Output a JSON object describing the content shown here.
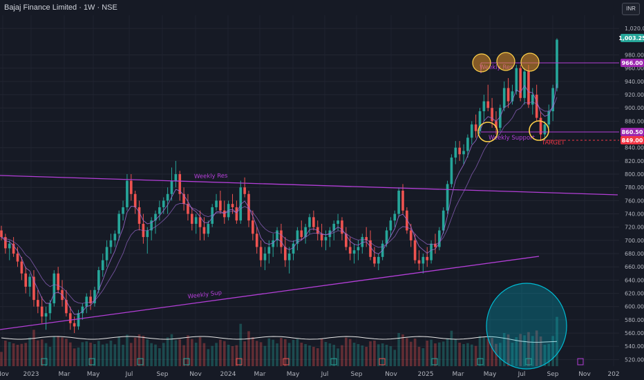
{
  "header": {
    "title": "Bajaj Finance Limited · 1W · NSE",
    "currency": "INR"
  },
  "colors": {
    "background": "#161a25",
    "up": "#26a69a",
    "down": "#ef5350",
    "trendline": "#b43fd8",
    "ema": "#9c6bd1",
    "volume_ma": "#e8e8e8",
    "highlight_circle": "#ffd24a",
    "volume_oval": "#00bcd4",
    "last_price_badge": "#26a69a",
    "resistance_badge": "#9c27b0",
    "support_badge": "#9c27b0",
    "target_badge": "#f23645"
  },
  "chart_data": {
    "type": "candlestick",
    "title": "Bajaj Finance Limited · 1W · NSE",
    "ylim": [
      510,
      1040
    ],
    "y_ticks": [
      "1,020.00",
      "980.00",
      "960.00",
      "940.00",
      "920.00",
      "900.00",
      "880.00",
      "840.00",
      "820.00",
      "800.00",
      "780.00",
      "760.00",
      "740.00",
      "720.00",
      "700.00",
      "680.00",
      "660.00",
      "640.00",
      "620.00",
      "600.00",
      "580.00",
      "560.00",
      "540.00",
      "520.00"
    ],
    "x_ticks": [
      "Nov",
      "2023",
      "Mar",
      "May",
      "Jul",
      "Sep",
      "Nov",
      "2024",
      "Mar",
      "May",
      "Jul",
      "Sep",
      "Nov",
      "2025",
      "Mar",
      "May",
      "Jul",
      "Sep",
      "Nov",
      "202"
    ],
    "last_price": "1,003.25",
    "price_labels": [
      {
        "name": "resistance",
        "text": "966.00"
      },
      {
        "name": "support",
        "text": "860.50"
      },
      {
        "name": "target",
        "text": "849.00"
      }
    ],
    "series": [
      {
        "type": "ohlc",
        "values": [
          [
            715,
            722,
            700,
            705
          ],
          [
            705,
            710,
            680,
            688
          ],
          [
            688,
            700,
            670,
            695
          ],
          [
            695,
            705,
            675,
            680
          ],
          [
            680,
            690,
            660,
            668
          ],
          [
            668,
            675,
            640,
            650
          ],
          [
            650,
            660,
            620,
            630
          ],
          [
            630,
            650,
            615,
            645
          ],
          [
            645,
            655,
            600,
            610
          ],
          [
            610,
            625,
            590,
            600
          ],
          [
            600,
            615,
            575,
            585
          ],
          [
            585,
            600,
            565,
            590
          ],
          [
            590,
            610,
            580,
            605
          ],
          [
            605,
            655,
            600,
            650
          ],
          [
            650,
            660,
            620,
            625
          ],
          [
            625,
            640,
            600,
            610
          ],
          [
            610,
            625,
            585,
            590
          ],
          [
            590,
            600,
            565,
            575
          ],
          [
            575,
            585,
            560,
            570
          ],
          [
            570,
            595,
            565,
            590
          ],
          [
            590,
            605,
            580,
            600
          ],
          [
            600,
            620,
            590,
            615
          ],
          [
            615,
            625,
            595,
            605
          ],
          [
            605,
            630,
            600,
            625
          ],
          [
            625,
            660,
            620,
            655
          ],
          [
            655,
            680,
            645,
            670
          ],
          [
            670,
            700,
            660,
            690
          ],
          [
            690,
            710,
            680,
            700
          ],
          [
            700,
            715,
            690,
            710
          ],
          [
            710,
            745,
            700,
            740
          ],
          [
            740,
            760,
            730,
            750
          ],
          [
            750,
            800,
            745,
            790
          ],
          [
            790,
            800,
            760,
            770
          ],
          [
            770,
            775,
            740,
            750
          ],
          [
            750,
            760,
            715,
            725
          ],
          [
            725,
            740,
            695,
            705
          ],
          [
            705,
            720,
            680,
            715
          ],
          [
            715,
            735,
            700,
            730
          ],
          [
            730,
            745,
            710,
            740
          ],
          [
            740,
            760,
            730,
            750
          ],
          [
            750,
            765,
            740,
            760
          ],
          [
            760,
            780,
            740,
            770
          ],
          [
            770,
            810,
            760,
            790
          ],
          [
            790,
            820,
            780,
            800
          ],
          [
            800,
            805,
            760,
            770
          ],
          [
            770,
            780,
            745,
            755
          ],
          [
            755,
            770,
            730,
            740
          ],
          [
            740,
            750,
            715,
            725
          ],
          [
            725,
            740,
            710,
            735
          ],
          [
            735,
            745,
            700,
            720
          ],
          [
            720,
            735,
            700,
            710
          ],
          [
            710,
            730,
            705,
            725
          ],
          [
            725,
            755,
            720,
            750
          ],
          [
            750,
            770,
            745,
            760
          ],
          [
            760,
            775,
            740,
            745
          ],
          [
            745,
            760,
            725,
            735
          ],
          [
            735,
            760,
            730,
            755
          ],
          [
            755,
            770,
            740,
            750
          ],
          [
            750,
            760,
            725,
            730
          ],
          [
            730,
            790,
            725,
            780
          ],
          [
            780,
            795,
            765,
            770
          ],
          [
            770,
            775,
            720,
            730
          ],
          [
            730,
            745,
            700,
            710
          ],
          [
            710,
            720,
            680,
            690
          ],
          [
            690,
            700,
            660,
            670
          ],
          [
            670,
            690,
            655,
            680
          ],
          [
            680,
            700,
            665,
            690
          ],
          [
            690,
            710,
            675,
            700
          ],
          [
            700,
            720,
            690,
            715
          ],
          [
            715,
            725,
            680,
            690
          ],
          [
            690,
            705,
            660,
            670
          ],
          [
            670,
            690,
            650,
            680
          ],
          [
            680,
            700,
            670,
            695
          ],
          [
            695,
            720,
            685,
            715
          ],
          [
            715,
            730,
            700,
            705
          ],
          [
            705,
            725,
            695,
            720
          ],
          [
            720,
            740,
            710,
            735
          ],
          [
            735,
            745,
            715,
            720
          ],
          [
            720,
            730,
            700,
            710
          ],
          [
            710,
            725,
            690,
            700
          ],
          [
            700,
            715,
            685,
            705
          ],
          [
            705,
            720,
            690,
            715
          ],
          [
            715,
            730,
            700,
            725
          ],
          [
            725,
            740,
            715,
            730
          ],
          [
            730,
            735,
            700,
            710
          ],
          [
            710,
            720,
            685,
            690
          ],
          [
            690,
            705,
            670,
            680
          ],
          [
            680,
            695,
            665,
            685
          ],
          [
            685,
            700,
            670,
            690
          ],
          [
            690,
            710,
            680,
            705
          ],
          [
            705,
            720,
            690,
            700
          ],
          [
            700,
            715,
            670,
            675
          ],
          [
            675,
            690,
            660,
            665
          ],
          [
            665,
            680,
            655,
            675
          ],
          [
            675,
            700,
            670,
            695
          ],
          [
            695,
            720,
            690,
            715
          ],
          [
            715,
            735,
            705,
            730
          ],
          [
            730,
            745,
            720,
            740
          ],
          [
            740,
            780,
            735,
            775
          ],
          [
            775,
            785,
            740,
            745
          ],
          [
            745,
            750,
            710,
            715
          ],
          [
            715,
            725,
            690,
            700
          ],
          [
            700,
            710,
            665,
            670
          ],
          [
            670,
            685,
            655,
            665
          ],
          [
            665,
            680,
            650,
            675
          ],
          [
            675,
            690,
            660,
            670
          ],
          [
            670,
            700,
            665,
            695
          ],
          [
            695,
            710,
            680,
            690
          ],
          [
            690,
            720,
            685,
            715
          ],
          [
            715,
            750,
            710,
            745
          ],
          [
            745,
            790,
            740,
            785
          ],
          [
            785,
            830,
            780,
            825
          ],
          [
            825,
            850,
            815,
            840
          ],
          [
            840,
            850,
            820,
            830
          ],
          [
            830,
            845,
            815,
            835
          ],
          [
            835,
            860,
            825,
            855
          ],
          [
            855,
            880,
            845,
            875
          ],
          [
            875,
            890,
            855,
            865
          ],
          [
            865,
            900,
            860,
            895
          ],
          [
            895,
            920,
            880,
            910
          ],
          [
            910,
            935,
            895,
            900
          ],
          [
            900,
            915,
            870,
            880
          ],
          [
            880,
            895,
            860,
            870
          ],
          [
            870,
            905,
            865,
            900
          ],
          [
            900,
            940,
            895,
            930
          ],
          [
            930,
            945,
            900,
            910
          ],
          [
            910,
            935,
            905,
            925
          ],
          [
            925,
            965,
            920,
            960
          ],
          [
            960,
            965,
            910,
            915
          ],
          [
            915,
            960,
            905,
            955
          ],
          [
            955,
            965,
            900,
            905
          ],
          [
            905,
            930,
            890,
            920
          ],
          [
            920,
            935,
            880,
            885
          ],
          [
            885,
            895,
            850,
            860
          ],
          [
            860,
            880,
            850,
            875
          ],
          [
            875,
            905,
            870,
            895
          ],
          [
            895,
            935,
            880,
            930
          ],
          [
            930,
            1005,
            925,
            1003
          ]
        ]
      }
    ],
    "volume_ma": true,
    "annotations": [
      "Weekly Res",
      "Weekly Sup",
      "Weekly Support",
      "Weekly Res",
      "TARGET"
    ]
  }
}
